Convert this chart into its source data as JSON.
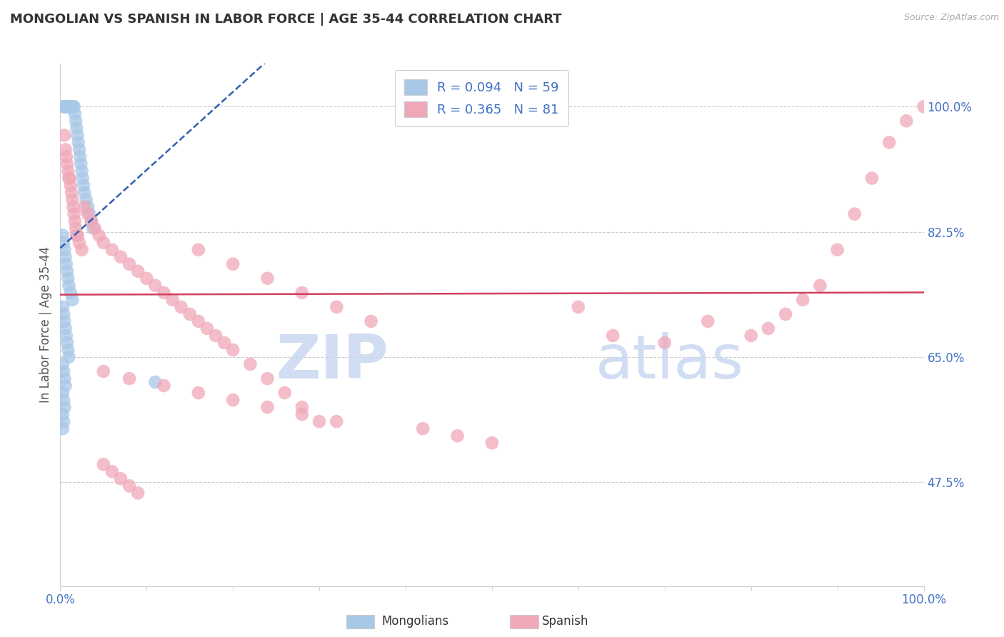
{
  "title": "MONGOLIAN VS SPANISH IN LABOR FORCE | AGE 35-44 CORRELATION CHART",
  "source": "Source: ZipAtlas.com",
  "ylabel": "In Labor Force | Age 35-44",
  "xlim": [
    0.0,
    1.0
  ],
  "ylim": [
    0.33,
    1.06
  ],
  "ytick_vals": [
    0.475,
    0.65,
    0.825,
    1.0
  ],
  "ytick_labels": [
    "47.5%",
    "65.0%",
    "82.5%",
    "100.0%"
  ],
  "xtick_vals": [
    0.0,
    1.0
  ],
  "xtick_labels": [
    "0.0%",
    "100.0%"
  ],
  "mongolian_color": "#a8c8e8",
  "spanish_color": "#f0a8b8",
  "mongolian_line_color": "#3060b0",
  "spanish_line_color": "#d04060",
  "mongolian_R": 0.094,
  "mongolian_N": 59,
  "spanish_R": 0.365,
  "spanish_N": 81,
  "watermark_color": "#c8d8f0",
  "background": "#ffffff",
  "grid_color": "#cccccc",
  "tick_color": "#4472c4",
  "title_color": "#333333",
  "source_color": "#aaaaaa",
  "spine_color": "#cccccc",
  "legend_edge_color": "#cccccc",
  "mongolian_x": [
    0.003,
    0.005,
    0.006,
    0.007,
    0.008,
    0.009,
    0.01,
    0.011,
    0.012,
    0.013,
    0.014,
    0.015,
    0.016,
    0.017,
    0.018,
    0.019,
    0.02,
    0.021,
    0.022,
    0.023,
    0.024,
    0.025,
    0.026,
    0.027,
    0.028,
    0.03,
    0.032,
    0.034,
    0.036,
    0.038,
    0.003,
    0.004,
    0.005,
    0.006,
    0.007,
    0.008,
    0.009,
    0.01,
    0.012,
    0.014,
    0.003,
    0.004,
    0.005,
    0.006,
    0.007,
    0.008,
    0.009,
    0.01,
    0.003,
    0.004,
    0.005,
    0.006,
    0.003,
    0.004,
    0.005,
    0.003,
    0.004,
    0.003,
    0.11
  ],
  "mongolian_y": [
    1.0,
    1.0,
    1.0,
    1.0,
    1.0,
    1.0,
    1.0,
    1.0,
    1.0,
    1.0,
    1.0,
    1.0,
    1.0,
    0.99,
    0.98,
    0.97,
    0.96,
    0.95,
    0.94,
    0.93,
    0.92,
    0.91,
    0.9,
    0.89,
    0.88,
    0.87,
    0.86,
    0.85,
    0.84,
    0.83,
    0.82,
    0.81,
    0.8,
    0.79,
    0.78,
    0.77,
    0.76,
    0.75,
    0.74,
    0.73,
    0.72,
    0.71,
    0.7,
    0.69,
    0.68,
    0.67,
    0.66,
    0.65,
    0.64,
    0.63,
    0.62,
    0.61,
    0.6,
    0.59,
    0.58,
    0.57,
    0.56,
    0.55,
    0.615
  ],
  "spanish_x": [
    0.005,
    0.006,
    0.007,
    0.008,
    0.009,
    0.01,
    0.011,
    0.012,
    0.013,
    0.014,
    0.015,
    0.016,
    0.017,
    0.018,
    0.019,
    0.02,
    0.022,
    0.025,
    0.028,
    0.032,
    0.036,
    0.04,
    0.045,
    0.05,
    0.06,
    0.07,
    0.08,
    0.09,
    0.1,
    0.11,
    0.12,
    0.13,
    0.14,
    0.15,
    0.16,
    0.17,
    0.18,
    0.19,
    0.2,
    0.22,
    0.24,
    0.26,
    0.28,
    0.3,
    0.16,
    0.2,
    0.24,
    0.28,
    0.32,
    0.36,
    0.05,
    0.08,
    0.12,
    0.16,
    0.2,
    0.24,
    0.28,
    0.32,
    0.05,
    0.06,
    0.07,
    0.08,
    0.09,
    0.6,
    0.64,
    0.7,
    0.75,
    0.8,
    0.82,
    0.84,
    0.86,
    0.88,
    0.9,
    0.92,
    0.94,
    0.96,
    0.98,
    1.0,
    0.42,
    0.46,
    0.5
  ],
  "spanish_y": [
    0.96,
    0.94,
    0.93,
    0.92,
    0.91,
    0.9,
    0.9,
    0.89,
    0.88,
    0.87,
    0.86,
    0.85,
    0.84,
    0.83,
    0.82,
    0.82,
    0.81,
    0.8,
    0.86,
    0.85,
    0.84,
    0.83,
    0.82,
    0.81,
    0.8,
    0.79,
    0.78,
    0.77,
    0.76,
    0.75,
    0.74,
    0.73,
    0.72,
    0.71,
    0.7,
    0.69,
    0.68,
    0.67,
    0.66,
    0.64,
    0.62,
    0.6,
    0.58,
    0.56,
    0.8,
    0.78,
    0.76,
    0.74,
    0.72,
    0.7,
    0.63,
    0.62,
    0.61,
    0.6,
    0.59,
    0.58,
    0.57,
    0.56,
    0.5,
    0.49,
    0.48,
    0.47,
    0.46,
    0.72,
    0.68,
    0.67,
    0.7,
    0.68,
    0.69,
    0.71,
    0.73,
    0.75,
    0.8,
    0.85,
    0.9,
    0.95,
    0.98,
    1.0,
    0.55,
    0.54,
    0.53
  ]
}
